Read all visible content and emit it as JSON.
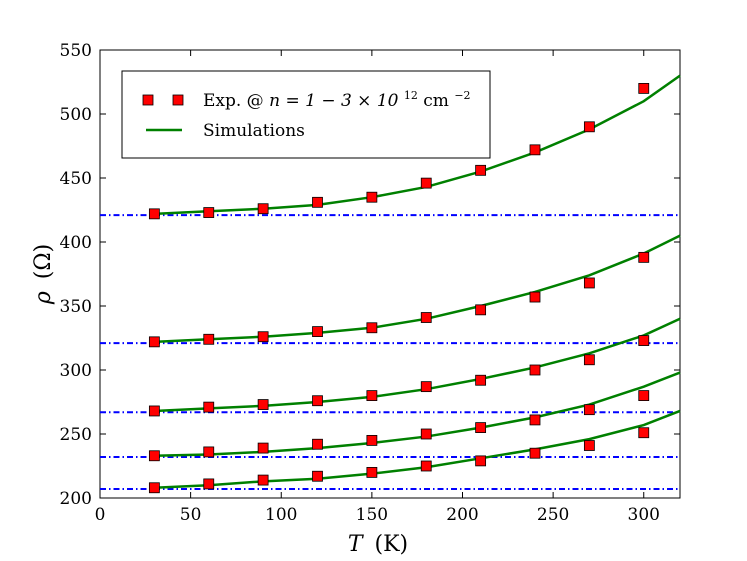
{
  "chart_data": {
    "type": "scatter",
    "xlabel_symbol": "T",
    "xlabel_unit": "(K)",
    "ylabel_symbol": "ρ",
    "ylabel_unit": "(Ω)",
    "xlim": [
      0,
      320
    ],
    "ylim": [
      200,
      550
    ],
    "xticks": [
      0,
      50,
      100,
      150,
      200,
      250,
      300
    ],
    "yticks": [
      200,
      250,
      300,
      350,
      400,
      450,
      500,
      550
    ],
    "legend": {
      "placement": "top-left",
      "experiment_label_prefix": "Exp. @ ",
      "experiment_label_math": "n = 1 − 3 × 10",
      "experiment_label_exponent": "12",
      "experiment_label_unit": " cm",
      "experiment_label_unit_exponent": "−2",
      "simulation_label": "Simulations"
    },
    "colors": {
      "experiment_marker": "#ff0000",
      "simulation_line": "#008000",
      "baseline": "#0000ff"
    },
    "series": [
      {
        "name": "series-1",
        "exp_x": [
          30,
          60,
          90,
          120,
          150,
          180,
          210,
          240,
          270,
          300
        ],
        "exp_y": [
          422,
          423,
          426,
          431,
          435,
          446,
          456,
          472,
          490,
          520
        ],
        "sim_x": [
          30,
          60,
          90,
          120,
          150,
          180,
          210,
          240,
          270,
          300,
          320
        ],
        "sim_y": [
          422,
          424,
          426,
          429,
          435,
          443,
          455,
          470,
          488,
          510,
          530
        ],
        "baseline": 421
      },
      {
        "name": "series-2",
        "exp_x": [
          30,
          60,
          90,
          120,
          150,
          180,
          210,
          240,
          270,
          300
        ],
        "exp_y": [
          322,
          324,
          326,
          330,
          333,
          341,
          347,
          357,
          368,
          388
        ],
        "sim_x": [
          30,
          60,
          90,
          120,
          150,
          180,
          210,
          240,
          270,
          300,
          320
        ],
        "sim_y": [
          322,
          324,
          326,
          329,
          333,
          340,
          350,
          361,
          374,
          391,
          405
        ],
        "baseline": 321
      },
      {
        "name": "series-3",
        "exp_x": [
          30,
          60,
          90,
          120,
          150,
          180,
          210,
          240,
          270,
          300
        ],
        "exp_y": [
          268,
          271,
          273,
          276,
          280,
          287,
          292,
          300,
          308,
          323
        ],
        "sim_x": [
          30,
          60,
          90,
          120,
          150,
          180,
          210,
          240,
          270,
          300,
          320
        ],
        "sim_y": [
          268,
          270,
          272,
          275,
          279,
          285,
          293,
          302,
          313,
          327,
          340
        ],
        "baseline": 267
      },
      {
        "name": "series-4",
        "exp_x": [
          30,
          60,
          90,
          120,
          150,
          180,
          210,
          240,
          270,
          300
        ],
        "exp_y": [
          233,
          236,
          239,
          242,
          245,
          250,
          255,
          261,
          269,
          280
        ],
        "sim_x": [
          30,
          60,
          90,
          120,
          150,
          180,
          210,
          240,
          270,
          300,
          320
        ],
        "sim_y": [
          233,
          234,
          236,
          239,
          243,
          248,
          255,
          263,
          273,
          287,
          298
        ],
        "baseline": 232
      },
      {
        "name": "series-5",
        "exp_x": [
          30,
          60,
          90,
          120,
          150,
          180,
          210,
          240,
          270,
          300
        ],
        "exp_y": [
          208,
          211,
          214,
          217,
          220,
          225,
          229,
          235,
          241,
          251
        ],
        "sim_x": [
          30,
          60,
          90,
          120,
          150,
          180,
          210,
          240,
          270,
          300,
          320
        ],
        "sim_y": [
          208,
          210,
          213,
          215,
          219,
          224,
          231,
          238,
          246,
          257,
          268
        ],
        "baseline": 207
      }
    ]
  }
}
